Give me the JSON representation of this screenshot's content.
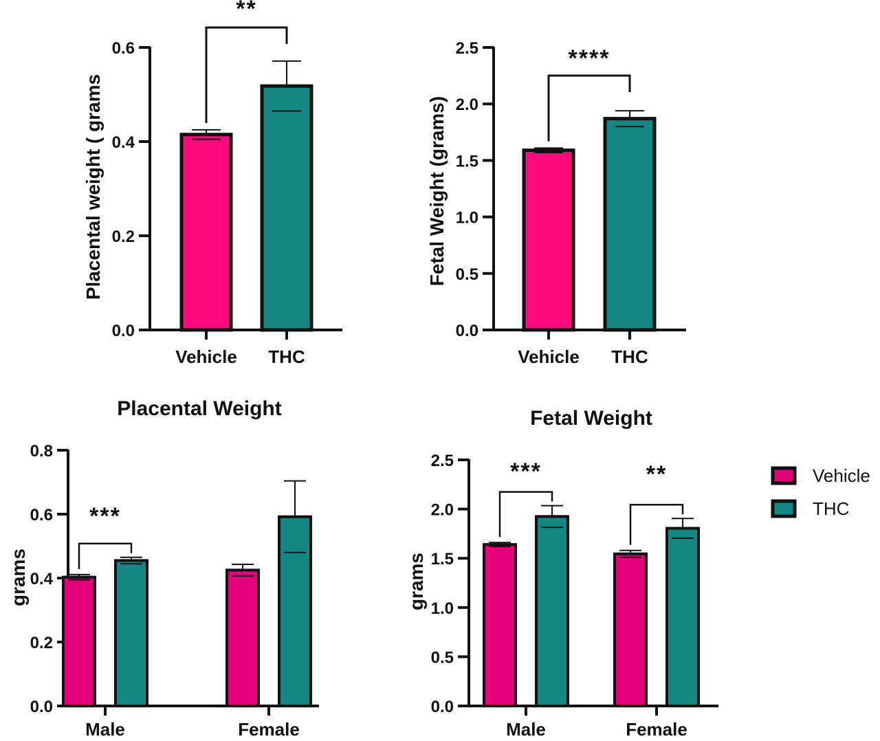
{
  "colors": {
    "vehicle": "#e5007a",
    "thc": "#148783",
    "outline": "#111111"
  },
  "legend": {
    "items": [
      {
        "label": "Vehicle",
        "color": "#e5007a"
      },
      {
        "label": "THC",
        "color": "#148783"
      }
    ]
  },
  "chart_data": [
    {
      "id": "placental-overall",
      "type": "bar",
      "title": "",
      "ylabel": "Placental weight ( grams",
      "ylim": [
        0,
        0.6
      ],
      "yticks": [
        "0.0",
        "0.2",
        "0.4",
        "0.6"
      ],
      "categories": [
        "Vehicle",
        "THC"
      ],
      "series": [
        {
          "key": "main",
          "values": [
            0.415,
            0.518
          ],
          "errors": [
            0.01,
            0.053
          ],
          "colors": [
            "#ff0a7e",
            "#148783"
          ]
        }
      ],
      "significance": [
        {
          "label": "**",
          "from": 0,
          "to": 1
        }
      ]
    },
    {
      "id": "fetal-overall",
      "type": "bar",
      "title": "",
      "ylabel": "Fetal Weight  (grams)",
      "ylim": [
        0,
        2.5
      ],
      "yticks": [
        "0.0",
        "0.5",
        "1.0",
        "1.5",
        "2.0",
        "2.5"
      ],
      "categories": [
        "Vehicle",
        "THC"
      ],
      "series": [
        {
          "key": "main",
          "values": [
            1.59,
            1.87
          ],
          "errors": [
            0.02,
            0.07
          ],
          "colors": [
            "#ff0a7e",
            "#148783"
          ]
        }
      ],
      "significance": [
        {
          "label": "****",
          "from": 0,
          "to": 1
        }
      ]
    },
    {
      "id": "placental-by-sex",
      "type": "bar",
      "title": "Placental Weight",
      "ylabel": "grams",
      "ylim": [
        0,
        0.8
      ],
      "yticks": [
        "0.0",
        "0.2",
        "0.4",
        "0.6",
        "0.8"
      ],
      "categories": [
        "Male",
        "Female"
      ],
      "series": [
        {
          "name": "Vehicle",
          "values": [
            0.403,
            0.425
          ],
          "errors": [
            0.008,
            0.018
          ]
        },
        {
          "name": "THC",
          "values": [
            0.455,
            0.592
          ],
          "errors": [
            0.01,
            0.112
          ]
        }
      ],
      "significance": [
        {
          "label": "***",
          "category": 0
        }
      ]
    },
    {
      "id": "fetal-by-sex",
      "type": "bar",
      "title": "Fetal Weight",
      "ylabel": "grams",
      "ylim": [
        0,
        2.5
      ],
      "yticks": [
        "0.0",
        "0.5",
        "1.0",
        "1.5",
        "2.0",
        "2.5"
      ],
      "categories": [
        "Male",
        "Female"
      ],
      "series": [
        {
          "name": "Vehicle",
          "values": [
            1.64,
            1.545
          ],
          "errors": [
            0.02,
            0.035
          ]
        },
        {
          "name": "THC",
          "values": [
            1.925,
            1.805
          ],
          "errors": [
            0.11,
            0.1
          ]
        }
      ],
      "significance": [
        {
          "label": "***",
          "category": 0
        },
        {
          "label": "**",
          "category": 1
        }
      ]
    }
  ]
}
